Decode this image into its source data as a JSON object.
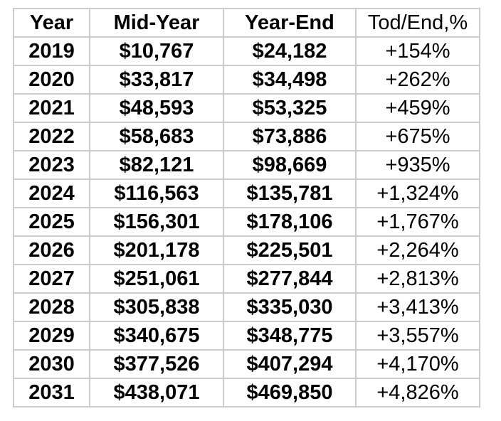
{
  "chart_data": {
    "type": "table",
    "columns": [
      "Year",
      "Mid-Year",
      "Year-End",
      "Tod/End,%"
    ],
    "rows": [
      [
        "2019",
        "$10,767",
        "$24,182",
        "+154%"
      ],
      [
        "2020",
        "$33,817",
        "$34,498",
        "+262%"
      ],
      [
        "2021",
        "$48,593",
        "$53,325",
        "+459%"
      ],
      [
        "2022",
        "$58,683",
        "$73,886",
        "+675%"
      ],
      [
        "2023",
        "$82,121",
        "$98,669",
        "+935%"
      ],
      [
        "2024",
        "$116,563",
        "$135,781",
        "+1,324%"
      ],
      [
        "2025",
        "$156,301",
        "$178,106",
        "+1,767%"
      ],
      [
        "2026",
        "$201,178",
        "$225,501",
        "+2,264%"
      ],
      [
        "2027",
        "$251,061",
        "$277,844",
        "+2,813%"
      ],
      [
        "2028",
        "$305,838",
        "$335,030",
        "+3,413%"
      ],
      [
        "2029",
        "$340,675",
        "$348,775",
        "+3,557%"
      ],
      [
        "2030",
        "$377,526",
        "$407,294",
        "+4,170%"
      ],
      [
        "2031",
        "$438,071",
        "$469,850",
        "+4,826%"
      ]
    ],
    "title": "",
    "layout_hints": {
      "grid": true,
      "bold_columns": [
        0,
        1,
        2
      ],
      "regular_columns": [
        3
      ]
    }
  },
  "styles": {
    "border_color": "#cccccc",
    "text_color": "#000000",
    "background": "#ffffff"
  }
}
